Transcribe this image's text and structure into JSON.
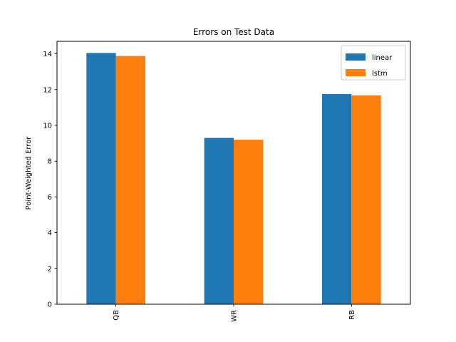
{
  "chart_data": {
    "type": "bar",
    "title": "Errors on Test Data",
    "xlabel": "",
    "ylabel": "Point-Weighted Error",
    "categories": [
      "QB",
      "WR",
      "RB"
    ],
    "series": [
      {
        "name": "linear",
        "color": "#1f77b4",
        "values": [
          14.05,
          9.3,
          11.75
        ]
      },
      {
        "name": "lstm",
        "color": "#ff7f0e",
        "values": [
          13.88,
          9.2,
          11.68
        ]
      }
    ],
    "ylim": [
      0,
      14.7
    ],
    "yticks": [
      0,
      2,
      4,
      6,
      8,
      10,
      12,
      14
    ],
    "grid": false,
    "legend_position": "top-right"
  }
}
